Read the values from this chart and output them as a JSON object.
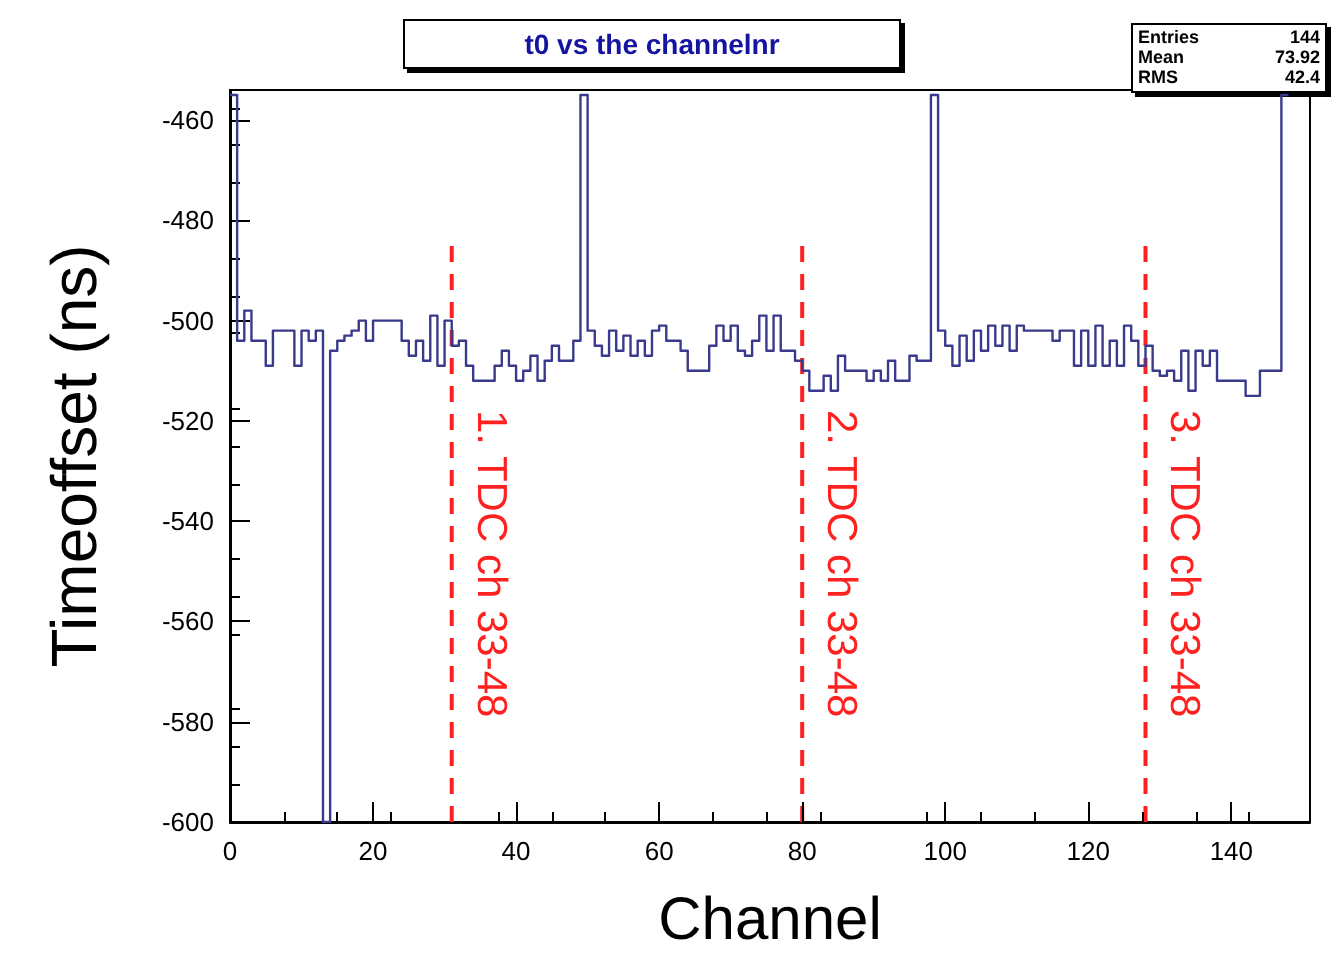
{
  "chart_data": {
    "type": "histogram",
    "title": "t0 vs the channelnr",
    "xlabel": "Channel",
    "ylabel": "Timeoffset (ns)",
    "color": "#3a3a8c",
    "bins": [
      0,
      1,
      2,
      3,
      4,
      5,
      6,
      7,
      8,
      9,
      10,
      11,
      12,
      13,
      14,
      15,
      16,
      17,
      18,
      19,
      20,
      21,
      22,
      23,
      24,
      25,
      26,
      27,
      28,
      29,
      30,
      31,
      32,
      33,
      34,
      35,
      36,
      37,
      38,
      39,
      40,
      41,
      42,
      43,
      44,
      45,
      46,
      47,
      48,
      49,
      50,
      51,
      52,
      53,
      54,
      55,
      56,
      57,
      58,
      59,
      60,
      61,
      62,
      63,
      64,
      65,
      66,
      67,
      68,
      69,
      70,
      71,
      72,
      73,
      74,
      75,
      76,
      77,
      78,
      79,
      80,
      81,
      82,
      83,
      84,
      85,
      86,
      87,
      88,
      89,
      90,
      91,
      92,
      93,
      94,
      95,
      96,
      97,
      98,
      99,
      100,
      101,
      102,
      103,
      104,
      105,
      106,
      107,
      108,
      109,
      110,
      111,
      112,
      113,
      114,
      115,
      116,
      117,
      118,
      119,
      120,
      121,
      122,
      123,
      124,
      125,
      126,
      127,
      128,
      129,
      130,
      131,
      132,
      133,
      134,
      135,
      136,
      137,
      138,
      139,
      140,
      141,
      142,
      143,
      144,
      145,
      146,
      147,
      148
    ],
    "values": [
      -455,
      -504,
      -498,
      -504,
      -504,
      -509,
      -502,
      -502,
      -502,
      -509,
      -502,
      -504,
      -502,
      -600,
      -506,
      -504,
      -503,
      -502,
      -500,
      -504,
      -500,
      -500,
      -500,
      -500,
      -504,
      -507,
      -504,
      -508,
      -499,
      -509,
      -500,
      -505,
      -504,
      -509,
      -512,
      -512,
      -512,
      -509,
      -506,
      -509,
      -512,
      -510,
      -507,
      -512,
      -508,
      -505,
      -508,
      -508,
      -504,
      -455,
      -502,
      -505,
      -507,
      -502,
      -506,
      -503,
      -507,
      -504,
      -507,
      -502,
      -501,
      -504,
      -504,
      -506,
      -510,
      -510,
      -510,
      -505,
      -501,
      -504,
      -501,
      -506,
      -507,
      -504,
      -499,
      -506,
      -499,
      -506,
      -506,
      -508,
      -510,
      -514,
      -514,
      -511,
      -514,
      -507,
      -510,
      -510,
      -510,
      -512,
      -510,
      -512,
      -508,
      -512,
      -512,
      -507,
      -508,
      -508,
      -455,
      -502,
      -505,
      -509,
      -503,
      -508,
      -502,
      -506,
      -501,
      -505,
      -501,
      -506,
      -501,
      -502,
      -502,
      -502,
      -502,
      -504,
      -502,
      -502,
      -509,
      -502,
      -509,
      -501,
      -509,
      -504,
      -509,
      -501,
      -504,
      -509,
      -505,
      -510,
      -511,
      -510,
      -512,
      -506,
      -514,
      -506,
      -509,
      -506,
      -512,
      -512,
      -512,
      -512,
      -515,
      -515,
      -510,
      -510,
      -510,
      -455
    ],
    "xlim": [
      0,
      151
    ],
    "xticks": [
      0,
      20,
      40,
      60,
      80,
      100,
      120,
      140
    ],
    "ylim": [
      -600,
      -454
    ],
    "yticks": [
      -600,
      -580,
      -560,
      -540,
      -520,
      -500,
      -480,
      -460
    ],
    "grid": false,
    "ref_lines": [
      {
        "axis": "x",
        "value": 31,
        "label": "1. TDC ch 33-48",
        "color": "#ff2020",
        "line_style": "dashed"
      },
      {
        "axis": "x",
        "value": 80,
        "label": "2. TDC ch 33-48",
        "color": "#ff2020",
        "line_style": "dashed"
      },
      {
        "axis": "x",
        "value": 128,
        "label": "3. TDC ch 33-48",
        "color": "#ff2020",
        "line_style": "dashed"
      }
    ],
    "annotations": [
      "Entries 144",
      "Mean 73.92",
      "RMS 42.4"
    ]
  }
}
